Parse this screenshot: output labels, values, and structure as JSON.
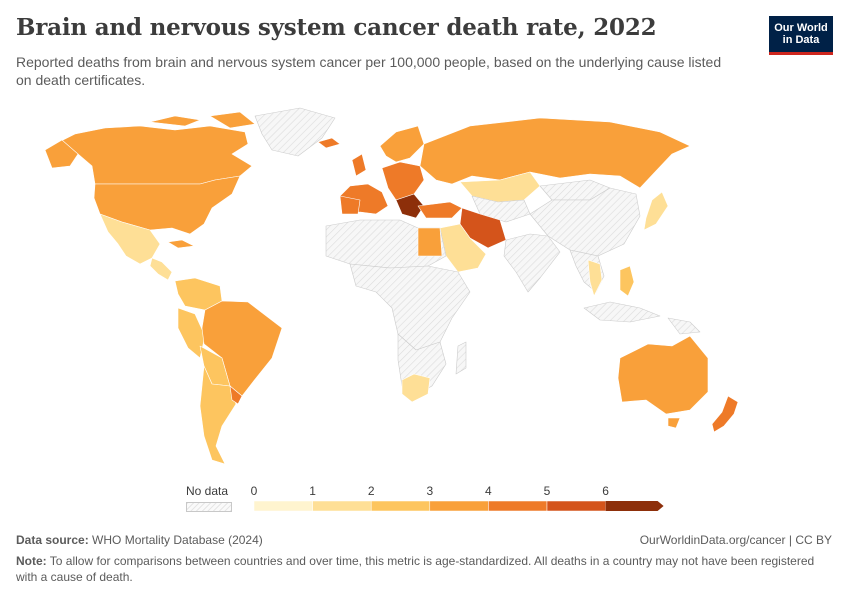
{
  "header": {
    "title": "Brain and nervous system cancer death rate, 2022",
    "subtitle": "Reported deaths from brain and nervous system cancer per 100,000 people, based on the underlying cause listed on death certificates.",
    "logo_line1": "Our World",
    "logo_line2": "in Data"
  },
  "legend": {
    "no_data_label": "No data",
    "ticks": [
      "0",
      "1",
      "2",
      "3",
      "4",
      "5",
      "6"
    ],
    "colors": [
      "#fff4cf",
      "#fedf96",
      "#fdc55f",
      "#f9a03a",
      "#ee7a28",
      "#d4541b",
      "#8d2f0a"
    ]
  },
  "colors": {
    "no_data_fill": "#f4f4f4",
    "no_data_stroke": "#cccccc"
  },
  "regions": [
    {
      "name": "Canada",
      "value": 3.6
    },
    {
      "name": "United States",
      "value": 3.8
    },
    {
      "name": "Mexico",
      "value": 1.4
    },
    {
      "name": "Cuba",
      "value": 3.8
    },
    {
      "name": "Brazil",
      "value": 3.6
    },
    {
      "name": "Argentina",
      "value": 2.7
    },
    {
      "name": "Uruguay",
      "value": 4.6
    },
    {
      "name": "Colombia",
      "value": 2.8
    },
    {
      "name": "Peru",
      "value": 2.2
    },
    {
      "name": "Greenland",
      "value": null
    },
    {
      "name": "Iceland",
      "value": 4.9
    },
    {
      "name": "Russia",
      "value": 3.9
    },
    {
      "name": "Kazakhstan",
      "value": 1.9
    },
    {
      "name": "Iran",
      "value": 5.6
    },
    {
      "name": "Saudi Arabia",
      "value": 1.5
    },
    {
      "name": "Egypt",
      "value": 3.9
    },
    {
      "name": "South Africa",
      "value": 1.8
    },
    {
      "name": "China",
      "value": null
    },
    {
      "name": "India",
      "value": null
    },
    {
      "name": "Japan",
      "value": 1.7
    },
    {
      "name": "Thailand",
      "value": 1.6
    },
    {
      "name": "Philippines",
      "value": 2.4
    },
    {
      "name": "Australia",
      "value": 3.9
    },
    {
      "name": "New Zealand",
      "value": 4.4
    }
  ],
  "footer": {
    "source_label": "Data source:",
    "source_text": "WHO Mortality Database (2024)",
    "url": "OurWorldinData.org/cancer | CC BY",
    "note_label": "Note:",
    "note_text": "To allow for comparisons between countries and over time, this metric is age-standardized. All deaths in a country may not have been registered with a cause of death."
  }
}
